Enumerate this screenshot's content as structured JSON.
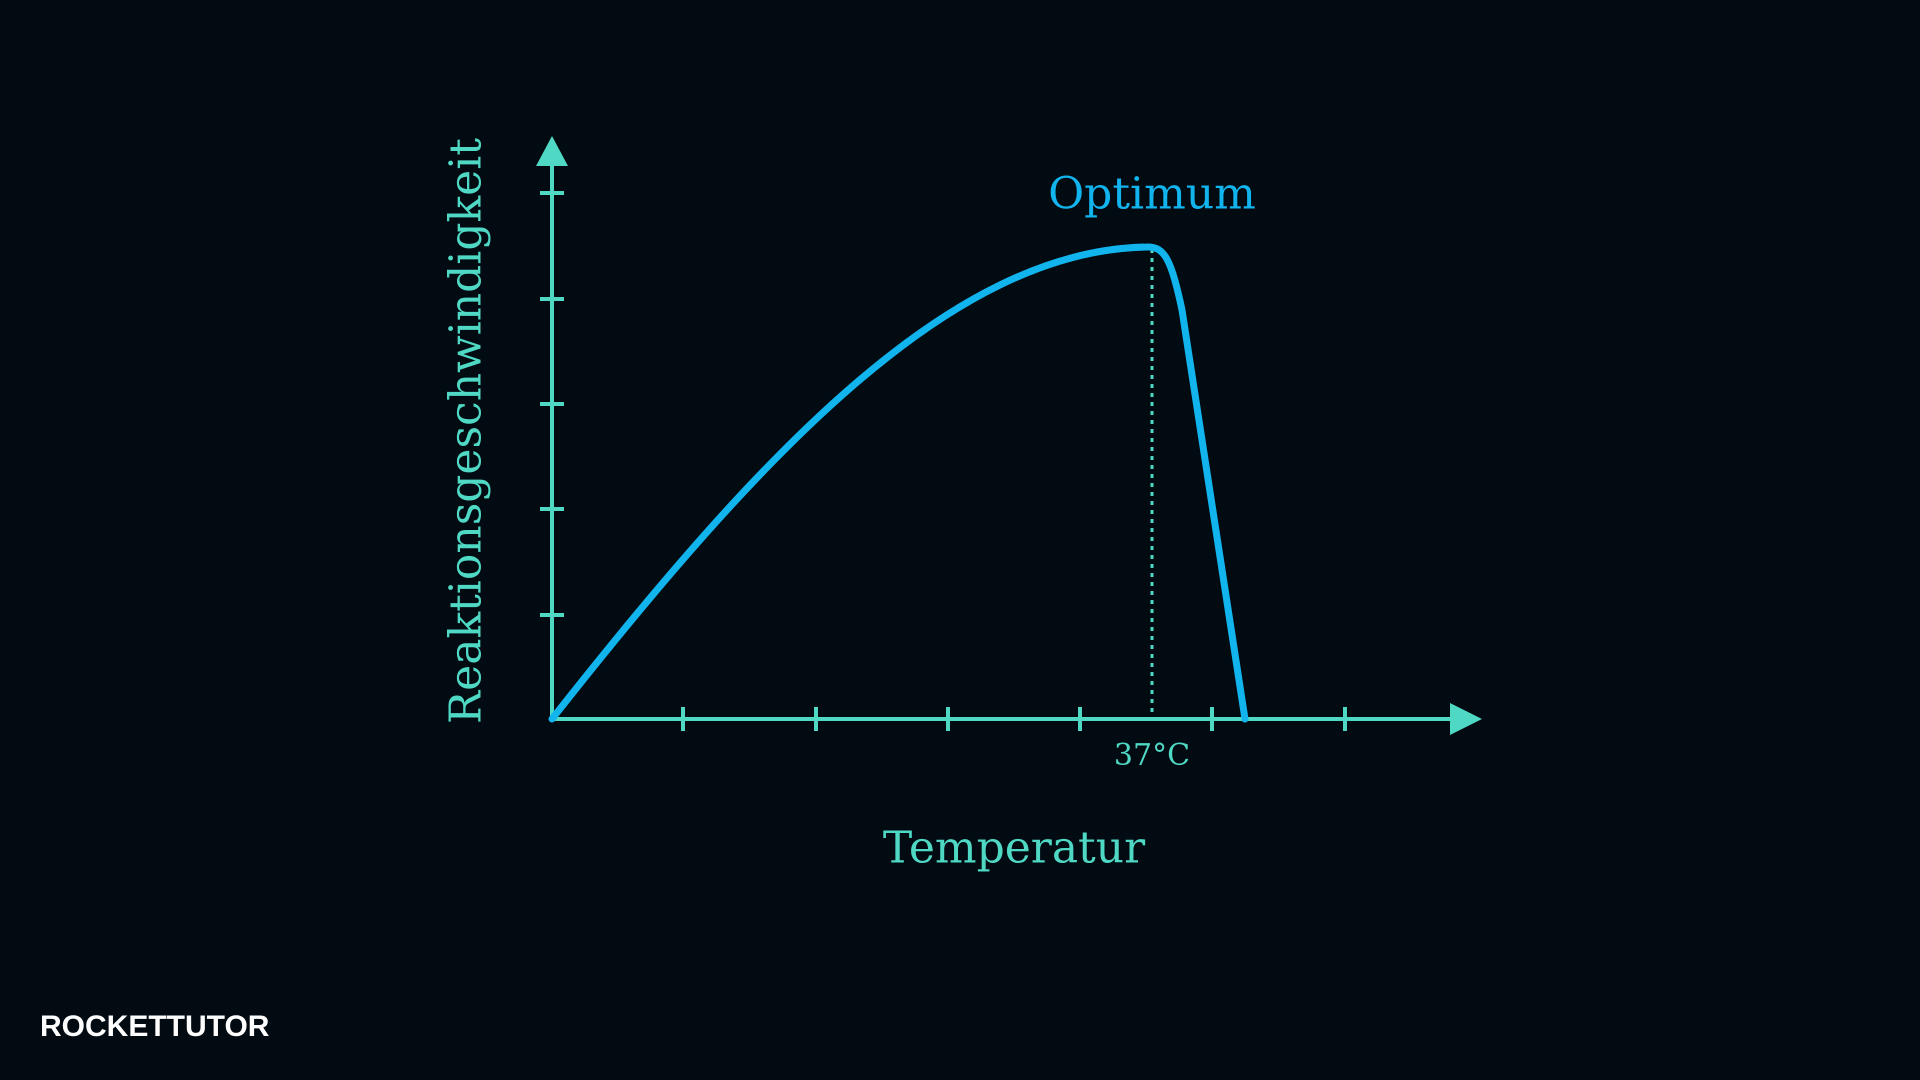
{
  "diagram": {
    "y_axis_label": "Reaktionsgeschwindigkeit",
    "x_axis_label": "Temperatur",
    "peak_label": "Optimum",
    "peak_temperature": "37°C"
  },
  "logo": {
    "text": "ROCKETTUTOR"
  }
}
